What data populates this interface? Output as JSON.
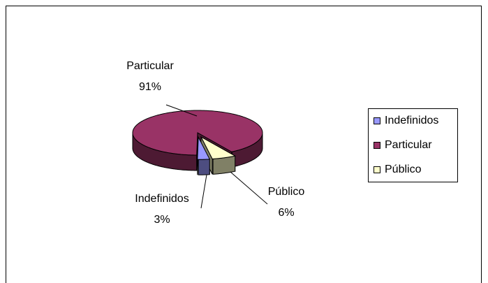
{
  "chart_data": {
    "type": "pie",
    "categories": [
      "Indefinidos",
      "Particular",
      "Público"
    ],
    "values": [
      3,
      91,
      6
    ],
    "value_labels": [
      "3%",
      "91%",
      "6%"
    ],
    "colors": [
      "#9999FF",
      "#993366",
      "#FFFFCC"
    ],
    "legend": "right"
  }
}
